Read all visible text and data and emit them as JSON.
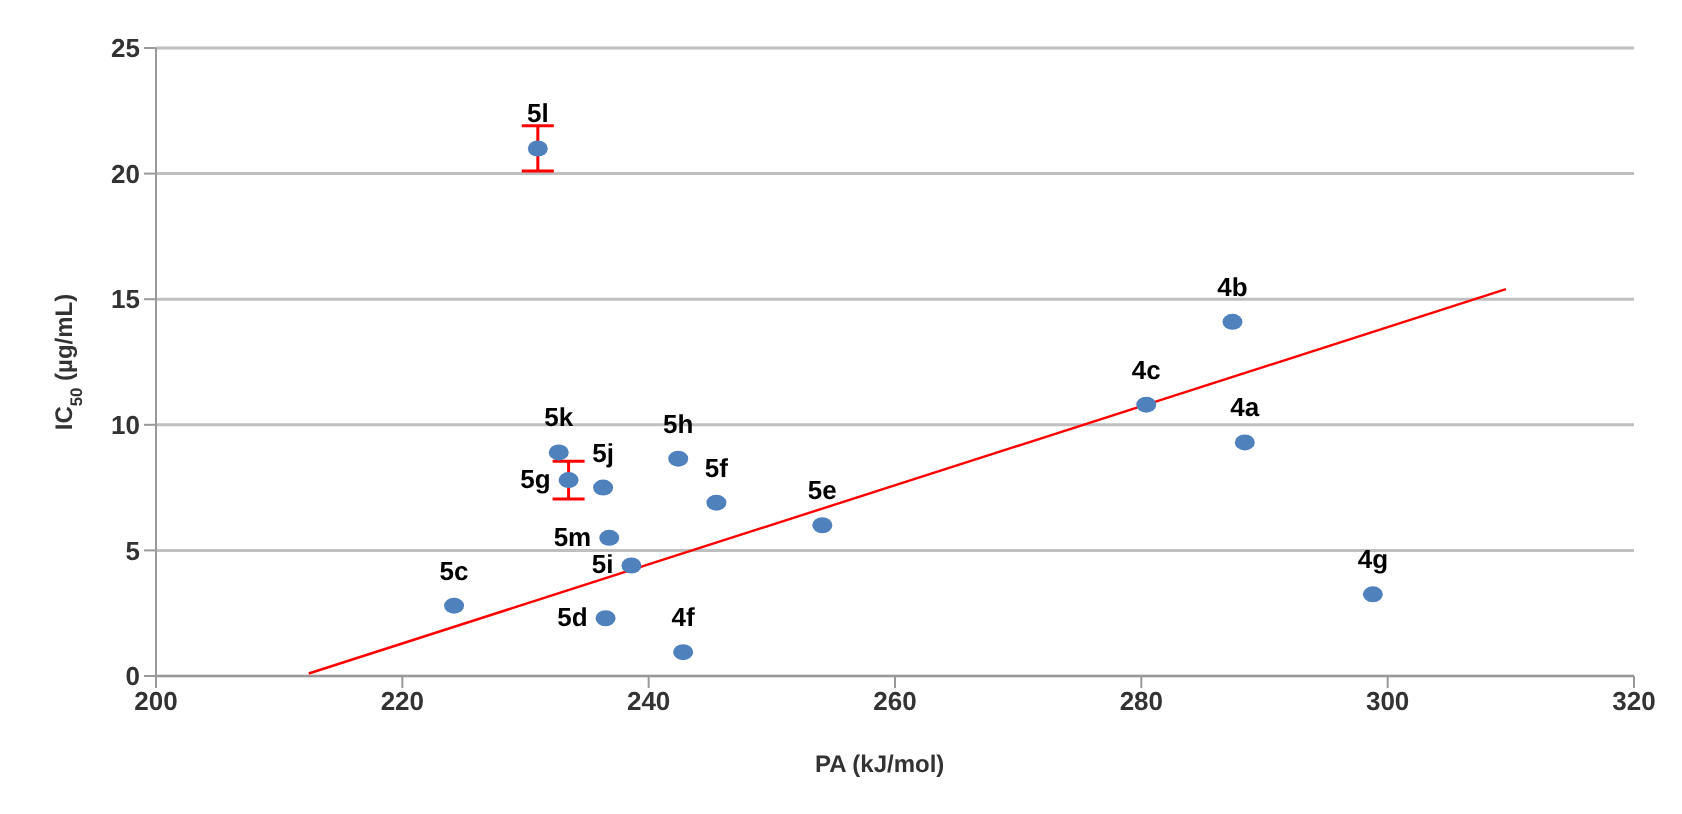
{
  "chart_data": {
    "type": "scatter",
    "xlabel": "PA (kJ/mol)",
    "ylabel": "IC$_{50}$ (µg/mL)",
    "xlim": [
      200,
      320
    ],
    "xticks": [
      200,
      220,
      240,
      260,
      280,
      300,
      320
    ],
    "ylim": [
      0,
      25
    ],
    "yticks": [
      0,
      5,
      10,
      15,
      20,
      25
    ],
    "grid": "y",
    "marker": "circle",
    "series": [
      {
        "name": "5l",
        "color": "#4f81bd",
        "x": [
          231
        ],
        "values": [
          21.0
        ],
        "errors": [
          0.9
        ]
      },
      {
        "name": "5k",
        "color": "#4f81bd",
        "x": [
          232.7
        ],
        "values": [
          8.9
        ]
      },
      {
        "name": "5g",
        "color": "#4f81bd",
        "x": [
          233.5
        ],
        "values": [
          7.8
        ],
        "errors": [
          0.75
        ]
      },
      {
        "name": "5j",
        "color": "#4f81bd",
        "x": [
          236.3
        ],
        "values": [
          7.5
        ]
      },
      {
        "name": "5h",
        "color": "#4f81bd",
        "x": [
          242.4
        ],
        "values": [
          8.65
        ]
      },
      {
        "name": "5f",
        "color": "#4f81bd",
        "x": [
          245.5
        ],
        "values": [
          6.9
        ]
      },
      {
        "name": "5e",
        "color": "#4f81bd",
        "x": [
          254.1
        ],
        "values": [
          6.0
        ]
      },
      {
        "name": "5m",
        "color": "#4f81bd",
        "x": [
          236.8
        ],
        "values": [
          5.5
        ]
      },
      {
        "name": "5i",
        "color": "#4f81bd",
        "x": [
          238.6
        ],
        "values": [
          4.4
        ]
      },
      {
        "name": "5c",
        "color": "#4f81bd",
        "x": [
          224.2
        ],
        "values": [
          2.8
        ]
      },
      {
        "name": "5d",
        "color": "#4f81bd",
        "x": [
          236.5
        ],
        "values": [
          2.3
        ]
      },
      {
        "name": "4f",
        "color": "#4f81bd",
        "x": [
          242.8
        ],
        "values": [
          0.95
        ]
      },
      {
        "name": "4b",
        "color": "#4f81bd",
        "x": [
          287.4
        ],
        "values": [
          14.1
        ]
      },
      {
        "name": "4c",
        "color": "#4f81bd",
        "x": [
          280.4
        ],
        "values": [
          10.8
        ]
      },
      {
        "name": "4a",
        "color": "#4f81bd",
        "x": [
          288.4
        ],
        "values": [
          9.3
        ]
      },
      {
        "name": "4g",
        "color": "#4f81bd",
        "x": [
          298.8
        ],
        "values": [
          3.25
        ]
      },
      {
        "type": "line",
        "color": "#ff0000",
        "marker": "none",
        "x": [
          212.4,
          309.6
        ],
        "values": [
          0.1,
          15.4
        ]
      }
    ]
  }
}
